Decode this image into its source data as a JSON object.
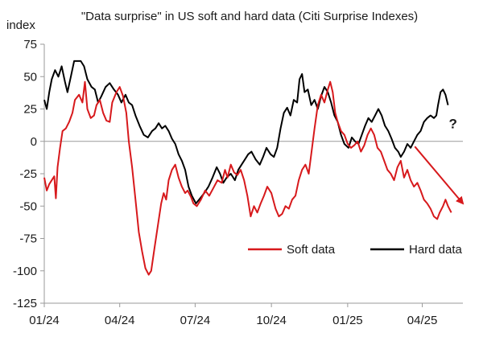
{
  "chart_data": {
    "type": "line",
    "title": "\"Data surprise\" in US soft and hard data (Citi Surprise Indexes)",
    "ylabel": "index",
    "ylim": [
      -125,
      75
    ],
    "yticks": [
      75,
      50,
      25,
      0,
      -25,
      -50,
      -75,
      -100,
      -125
    ],
    "xlim": [
      "2024-01-01",
      "2025-05-20"
    ],
    "xticks": [
      {
        "date": "2024-01-01",
        "label": "01/24"
      },
      {
        "date": "2024-04-01",
        "label": "04/24"
      },
      {
        "date": "2024-07-01",
        "label": "07/24"
      },
      {
        "date": "2024-10-01",
        "label": "10/24"
      },
      {
        "date": "2025-01-01",
        "label": "01/25"
      },
      {
        "date": "2025-04-01",
        "label": "04/25"
      }
    ],
    "grid": false,
    "zero_line": true,
    "legend": "bottom-right",
    "series": [
      {
        "name": "Soft data",
        "color": "#d7191c",
        "points": [
          [
            "2024-01-01",
            -28
          ],
          [
            "2024-01-04",
            -38
          ],
          [
            "2024-01-07",
            -33
          ],
          [
            "2024-01-10",
            -30
          ],
          [
            "2024-01-13",
            -27
          ],
          [
            "2024-01-15",
            -44
          ],
          [
            "2024-01-17",
            -20
          ],
          [
            "2024-01-20",
            -5
          ],
          [
            "2024-01-23",
            8
          ],
          [
            "2024-01-27",
            10
          ],
          [
            "2024-01-31",
            15
          ],
          [
            "2024-02-04",
            22
          ],
          [
            "2024-02-07",
            32
          ],
          [
            "2024-02-12",
            36
          ],
          [
            "2024-02-16",
            30
          ],
          [
            "2024-02-19",
            46
          ],
          [
            "2024-02-22",
            25
          ],
          [
            "2024-02-26",
            18
          ],
          [
            "2024-03-01",
            20
          ],
          [
            "2024-03-04",
            28
          ],
          [
            "2024-03-08",
            32
          ],
          [
            "2024-03-12",
            22
          ],
          [
            "2024-03-16",
            16
          ],
          [
            "2024-03-20",
            15
          ],
          [
            "2024-03-23",
            30
          ],
          [
            "2024-03-28",
            38
          ],
          [
            "2024-04-01",
            42
          ],
          [
            "2024-04-05",
            35
          ],
          [
            "2024-04-09",
            22
          ],
          [
            "2024-04-12",
            0
          ],
          [
            "2024-04-16",
            -20
          ],
          [
            "2024-04-20",
            -45
          ],
          [
            "2024-04-24",
            -70
          ],
          [
            "2024-04-28",
            -85
          ],
          [
            "2024-05-02",
            -98
          ],
          [
            "2024-05-06",
            -103
          ],
          [
            "2024-05-09",
            -100
          ],
          [
            "2024-05-13",
            -82
          ],
          [
            "2024-05-17",
            -65
          ],
          [
            "2024-05-21",
            -48
          ],
          [
            "2024-05-24",
            -40
          ],
          [
            "2024-05-27",
            -45
          ],
          [
            "2024-05-30",
            -30
          ],
          [
            "2024-06-03",
            -22
          ],
          [
            "2024-06-07",
            -18
          ],
          [
            "2024-06-11",
            -28
          ],
          [
            "2024-06-15",
            -35
          ],
          [
            "2024-06-19",
            -40
          ],
          [
            "2024-06-22",
            -38
          ],
          [
            "2024-06-26",
            -43
          ],
          [
            "2024-06-29",
            -48
          ],
          [
            "2024-07-03",
            -50
          ],
          [
            "2024-07-08",
            -45
          ],
          [
            "2024-07-13",
            -38
          ],
          [
            "2024-07-18",
            -42
          ],
          [
            "2024-07-23",
            -36
          ],
          [
            "2024-07-28",
            -30
          ],
          [
            "2024-08-02",
            -32
          ],
          [
            "2024-08-06",
            -22
          ],
          [
            "2024-08-09",
            -28
          ],
          [
            "2024-08-13",
            -18
          ],
          [
            "2024-08-17",
            -24
          ],
          [
            "2024-08-21",
            -26
          ],
          [
            "2024-08-25",
            -22
          ],
          [
            "2024-08-29",
            -30
          ],
          [
            "2024-09-02",
            -42
          ],
          [
            "2024-09-06",
            -58
          ],
          [
            "2024-09-10",
            -50
          ],
          [
            "2024-09-14",
            -55
          ],
          [
            "2024-09-18",
            -48
          ],
          [
            "2024-09-22",
            -42
          ],
          [
            "2024-09-26",
            -35
          ],
          [
            "2024-10-01",
            -40
          ],
          [
            "2024-10-06",
            -52
          ],
          [
            "2024-10-10",
            -58
          ],
          [
            "2024-10-14",
            -56
          ],
          [
            "2024-10-18",
            -50
          ],
          [
            "2024-10-22",
            -52
          ],
          [
            "2024-10-26",
            -45
          ],
          [
            "2024-10-30",
            -42
          ],
          [
            "2024-11-03",
            -30
          ],
          [
            "2024-11-07",
            -22
          ],
          [
            "2024-11-11",
            -18
          ],
          [
            "2024-11-15",
            -25
          ],
          [
            "2024-11-18",
            -10
          ],
          [
            "2024-11-22",
            10
          ],
          [
            "2024-11-26",
            28
          ],
          [
            "2024-11-30",
            36
          ],
          [
            "2024-12-04",
            30
          ],
          [
            "2024-12-08",
            40
          ],
          [
            "2024-12-11",
            46
          ],
          [
            "2024-12-14",
            38
          ],
          [
            "2024-12-17",
            22
          ],
          [
            "2024-12-20",
            15
          ],
          [
            "2024-12-24",
            8
          ],
          [
            "2024-12-28",
            5
          ],
          [
            "2025-01-01",
            -2
          ],
          [
            "2025-01-05",
            -5
          ],
          [
            "2025-01-09",
            -3
          ],
          [
            "2025-01-13",
            0
          ],
          [
            "2025-01-17",
            -8
          ],
          [
            "2025-01-21",
            -3
          ],
          [
            "2025-01-25",
            5
          ],
          [
            "2025-01-29",
            10
          ],
          [
            "2025-02-02",
            5
          ],
          [
            "2025-02-06",
            -5
          ],
          [
            "2025-02-10",
            -8
          ],
          [
            "2025-02-14",
            -15
          ],
          [
            "2025-02-18",
            -22
          ],
          [
            "2025-02-22",
            -25
          ],
          [
            "2025-02-26",
            -30
          ],
          [
            "2025-03-02",
            -20
          ],
          [
            "2025-03-06",
            -15
          ],
          [
            "2025-03-10",
            -28
          ],
          [
            "2025-03-14",
            -22
          ],
          [
            "2025-03-18",
            -30
          ],
          [
            "2025-03-22",
            -35
          ],
          [
            "2025-03-26",
            -32
          ],
          [
            "2025-03-30",
            -38
          ],
          [
            "2025-04-03",
            -45
          ],
          [
            "2025-04-07",
            -48
          ],
          [
            "2025-04-11",
            -52
          ],
          [
            "2025-04-15",
            -58
          ],
          [
            "2025-04-19",
            -60
          ],
          [
            "2025-04-22",
            -55
          ],
          [
            "2025-04-26",
            -50
          ],
          [
            "2025-04-29",
            -45
          ],
          [
            "2025-05-02",
            -50
          ],
          [
            "2025-05-06",
            -55
          ]
        ]
      },
      {
        "name": "Hard data",
        "color": "#000000",
        "points": [
          [
            "2024-01-01",
            32
          ],
          [
            "2024-01-04",
            25
          ],
          [
            "2024-01-07",
            38
          ],
          [
            "2024-01-10",
            48
          ],
          [
            "2024-01-14",
            55
          ],
          [
            "2024-01-18",
            50
          ],
          [
            "2024-01-22",
            58
          ],
          [
            "2024-01-26",
            46
          ],
          [
            "2024-01-29",
            38
          ],
          [
            "2024-02-02",
            50
          ],
          [
            "2024-02-06",
            62
          ],
          [
            "2024-02-14",
            62
          ],
          [
            "2024-02-18",
            58
          ],
          [
            "2024-02-22",
            48
          ],
          [
            "2024-02-27",
            42
          ],
          [
            "2024-03-02",
            40
          ],
          [
            "2024-03-06",
            30
          ],
          [
            "2024-03-10",
            35
          ],
          [
            "2024-03-15",
            42
          ],
          [
            "2024-03-20",
            45
          ],
          [
            "2024-03-25",
            40
          ],
          [
            "2024-03-30",
            36
          ],
          [
            "2024-04-03",
            30
          ],
          [
            "2024-04-08",
            36
          ],
          [
            "2024-04-12",
            30
          ],
          [
            "2024-04-16",
            28
          ],
          [
            "2024-04-20",
            20
          ],
          [
            "2024-04-25",
            12
          ],
          [
            "2024-04-30",
            5
          ],
          [
            "2024-05-05",
            3
          ],
          [
            "2024-05-10",
            8
          ],
          [
            "2024-05-14",
            10
          ],
          [
            "2024-05-18",
            14
          ],
          [
            "2024-05-22",
            10
          ],
          [
            "2024-05-26",
            12
          ],
          [
            "2024-05-30",
            8
          ],
          [
            "2024-06-03",
            2
          ],
          [
            "2024-06-07",
            -2
          ],
          [
            "2024-06-11",
            -10
          ],
          [
            "2024-06-15",
            -15
          ],
          [
            "2024-06-19",
            -22
          ],
          [
            "2024-06-23",
            -35
          ],
          [
            "2024-06-27",
            -42
          ],
          [
            "2024-07-02",
            -48
          ],
          [
            "2024-07-07",
            -44
          ],
          [
            "2024-07-12",
            -40
          ],
          [
            "2024-07-17",
            -35
          ],
          [
            "2024-07-22",
            -28
          ],
          [
            "2024-07-27",
            -20
          ],
          [
            "2024-07-31",
            -25
          ],
          [
            "2024-08-04",
            -32
          ],
          [
            "2024-08-08",
            -28
          ],
          [
            "2024-08-13",
            -25
          ],
          [
            "2024-08-18",
            -30
          ],
          [
            "2024-08-22",
            -22
          ],
          [
            "2024-08-26",
            -18
          ],
          [
            "2024-08-30",
            -14
          ],
          [
            "2024-09-03",
            -10
          ],
          [
            "2024-09-07",
            -8
          ],
          [
            "2024-09-12",
            -14
          ],
          [
            "2024-09-17",
            -18
          ],
          [
            "2024-09-21",
            -12
          ],
          [
            "2024-09-25",
            -5
          ],
          [
            "2024-09-30",
            -10
          ],
          [
            "2024-10-04",
            -12
          ],
          [
            "2024-10-08",
            -5
          ],
          [
            "2024-10-12",
            10
          ],
          [
            "2024-10-16",
            22
          ],
          [
            "2024-10-20",
            26
          ],
          [
            "2024-10-24",
            20
          ],
          [
            "2024-10-28",
            32
          ],
          [
            "2024-11-01",
            30
          ],
          [
            "2024-11-04",
            48
          ],
          [
            "2024-11-07",
            52
          ],
          [
            "2024-11-10",
            38
          ],
          [
            "2024-11-14",
            40
          ],
          [
            "2024-11-18",
            28
          ],
          [
            "2024-11-22",
            32
          ],
          [
            "2024-11-26",
            25
          ],
          [
            "2024-11-30",
            35
          ],
          [
            "2024-12-04",
            42
          ],
          [
            "2024-12-08",
            38
          ],
          [
            "2024-12-12",
            30
          ],
          [
            "2024-12-16",
            20
          ],
          [
            "2024-12-20",
            15
          ],
          [
            "2024-12-24",
            5
          ],
          [
            "2024-12-28",
            -2
          ],
          [
            "2025-01-02",
            -5
          ],
          [
            "2025-01-06",
            3
          ],
          [
            "2025-01-10",
            0
          ],
          [
            "2025-01-14",
            -2
          ],
          [
            "2025-01-18",
            5
          ],
          [
            "2025-01-22",
            12
          ],
          [
            "2025-01-26",
            18
          ],
          [
            "2025-01-30",
            15
          ],
          [
            "2025-02-03",
            20
          ],
          [
            "2025-02-07",
            25
          ],
          [
            "2025-02-11",
            20
          ],
          [
            "2025-02-15",
            12
          ],
          [
            "2025-02-19",
            8
          ],
          [
            "2025-02-23",
            2
          ],
          [
            "2025-02-27",
            -5
          ],
          [
            "2025-03-03",
            -8
          ],
          [
            "2025-03-06",
            -12
          ],
          [
            "2025-03-10",
            -8
          ],
          [
            "2025-03-14",
            -2
          ],
          [
            "2025-03-18",
            -5
          ],
          [
            "2025-03-22",
            0
          ],
          [
            "2025-03-26",
            5
          ],
          [
            "2025-03-30",
            8
          ],
          [
            "2025-04-03",
            15
          ],
          [
            "2025-04-07",
            18
          ],
          [
            "2025-04-11",
            20
          ],
          [
            "2025-04-15",
            18
          ],
          [
            "2025-04-18",
            20
          ],
          [
            "2025-04-20",
            28
          ],
          [
            "2025-04-23",
            38
          ],
          [
            "2025-04-26",
            40
          ],
          [
            "2025-04-29",
            36
          ],
          [
            "2025-05-02",
            28
          ]
        ]
      }
    ],
    "annotations": [
      {
        "type": "arrow",
        "series": "Soft data",
        "color": "#d7191c",
        "from": [
          "2025-03-23",
          -4
        ],
        "to": [
          "2025-05-20",
          -48
        ]
      },
      {
        "type": "text",
        "text": "?",
        "at": [
          "2025-05-08",
          10
        ]
      }
    ]
  }
}
